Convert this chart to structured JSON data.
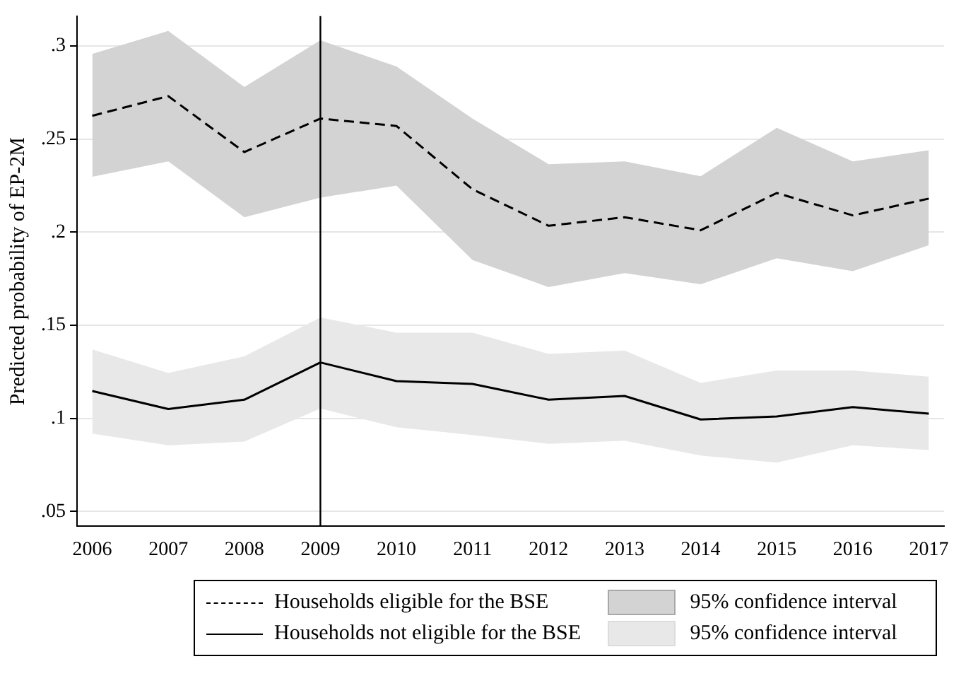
{
  "chart_data": {
    "type": "line",
    "ylabel": "Predicted probability of EP-2M",
    "x": [
      2006,
      2007,
      2008,
      2009,
      2010,
      2011,
      2012,
      2013,
      2014,
      2015,
      2016,
      2017
    ],
    "xlim": [
      2005.8,
      2017.2
    ],
    "xticks": [
      2006,
      2007,
      2008,
      2009,
      2010,
      2011,
      2012,
      2013,
      2014,
      2015,
      2016,
      2017
    ],
    "ylim": [
      0.042,
      0.316
    ],
    "yticks": [
      {
        "value": 0.05,
        "label": ".05"
      },
      {
        "value": 0.1,
        "label": ".1"
      },
      {
        "value": 0.15,
        "label": ".15"
      },
      {
        "value": 0.2,
        "label": ".2"
      },
      {
        "value": 0.25,
        "label": ".25"
      },
      {
        "value": 0.3,
        "label": ".3"
      }
    ],
    "grid": "y",
    "legend": "bottom",
    "marker": "none",
    "series": [
      {
        "name": "Households eligible for the BSE",
        "color": "#000000",
        "line_style": "dashed",
        "values": [
          0.2625,
          0.273,
          0.243,
          0.261,
          0.257,
          0.223,
          0.2034,
          0.208,
          0.201,
          0.221,
          0.209,
          0.218
        ],
        "upper": [
          0.2957,
          0.308,
          0.278,
          0.303,
          0.289,
          0.261,
          0.2365,
          0.238,
          0.23,
          0.256,
          0.238,
          0.244
        ],
        "lower": [
          0.2297,
          0.238,
          0.208,
          0.2185,
          0.225,
          0.185,
          0.1705,
          0.178,
          0.172,
          0.186,
          0.179,
          0.193
        ]
      },
      {
        "name": "Households not eligible for the BSE",
        "color": "#000000",
        "line_style": "solid",
        "values": [
          0.1147,
          0.105,
          0.11,
          0.13,
          0.12,
          0.1185,
          0.11,
          0.112,
          0.0994,
          0.101,
          0.106,
          0.1025
        ],
        "upper": [
          0.137,
          0.1244,
          0.1333,
          0.1542,
          0.146,
          0.146,
          0.1346,
          0.1364,
          0.119,
          0.1257,
          0.1257,
          0.1224
        ],
        "lower": [
          0.0918,
          0.0855,
          0.0875,
          0.1053,
          0.0952,
          0.091,
          0.0863,
          0.088,
          0.08,
          0.0762,
          0.0855,
          0.083
        ]
      }
    ],
    "annotations": [
      "95% confidence interval",
      "95% confidence interval"
    ],
    "ref_lines": [
      {
        "axis": "x",
        "value": 2009,
        "color": "#000000"
      }
    ]
  }
}
